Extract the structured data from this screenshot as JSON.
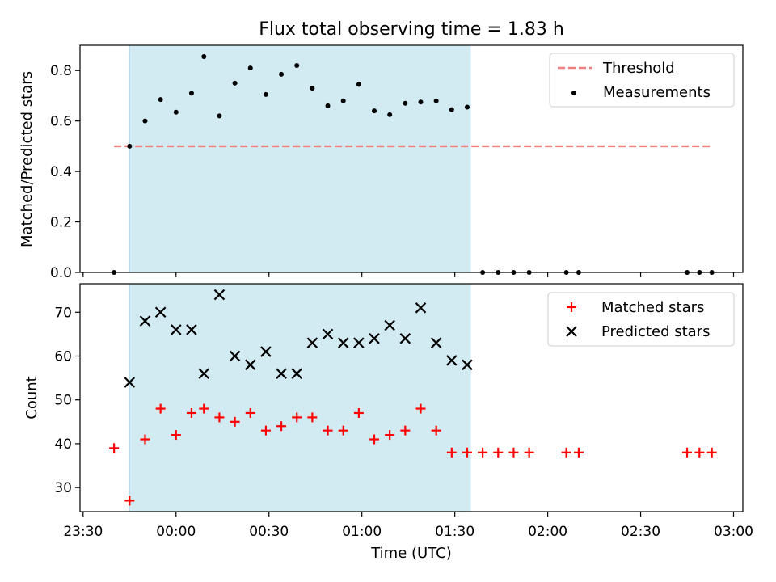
{
  "title": "Flux total observing time = 1.83 h",
  "colors": {
    "measurement": "#000000",
    "threshold": "#f08080",
    "matched": "#ff0000",
    "predicted": "#000000",
    "observing_band": "#add8e6"
  },
  "chart_data": [
    {
      "type": "scatter",
      "panel": "top",
      "ylabel": "Matched/Predicted stars",
      "xlabel": "",
      "ylim": [
        0,
        0.9
      ],
      "yticks": [
        0.0,
        0.2,
        0.4,
        0.6,
        0.8
      ],
      "ytick_labels": [
        "0.0",
        "0.2",
        "0.4",
        "0.6",
        "0.8"
      ],
      "legend": {
        "placement": "top-right",
        "entries": [
          "Threshold",
          "Measurements"
        ]
      },
      "shaded_band": {
        "start": "23:45",
        "end": "01:35"
      },
      "threshold": {
        "name": "Threshold",
        "value": 0.5,
        "x_start": "23:40",
        "x_end": "02:53"
      },
      "series": [
        {
          "name": "Measurements",
          "marker": "dot",
          "points": [
            [
              "23:40",
              0.0
            ],
            [
              "23:45",
              0.5
            ],
            [
              "23:50",
              0.6
            ],
            [
              "23:55",
              0.685
            ],
            [
              "00:00",
              0.635
            ],
            [
              "00:05",
              0.71
            ],
            [
              "00:09",
              0.855
            ],
            [
              "00:14",
              0.62
            ],
            [
              "00:19",
              0.75
            ],
            [
              "00:24",
              0.81
            ],
            [
              "00:29",
              0.705
            ],
            [
              "00:34",
              0.785
            ],
            [
              "00:39",
              0.82
            ],
            [
              "00:44",
              0.73
            ],
            [
              "00:49",
              0.66
            ],
            [
              "00:54",
              0.68
            ],
            [
              "00:59",
              0.745
            ],
            [
              "01:04",
              0.64
            ],
            [
              "01:09",
              0.625
            ],
            [
              "01:14",
              0.67
            ],
            [
              "01:19",
              0.675
            ],
            [
              "01:24",
              0.68
            ],
            [
              "01:29",
              0.645
            ],
            [
              "01:34",
              0.655
            ],
            [
              "01:39",
              0.0
            ],
            [
              "01:44",
              0.0
            ],
            [
              "01:49",
              0.0
            ],
            [
              "01:54",
              0.0
            ],
            [
              "02:06",
              0.0
            ],
            [
              "02:10",
              0.0
            ],
            [
              "02:45",
              0.0
            ],
            [
              "02:49",
              0.0
            ],
            [
              "02:53",
              0.0
            ]
          ]
        }
      ]
    },
    {
      "type": "scatter",
      "panel": "bottom",
      "ylabel": "Count",
      "xlabel": "Time (UTC)",
      "ylim": [
        24.5,
        76.5
      ],
      "yticks": [
        30,
        40,
        50,
        60,
        70
      ],
      "ytick_labels": [
        "30",
        "40",
        "50",
        "60",
        "70"
      ],
      "xlim": [
        "23:29",
        "03:03"
      ],
      "xticks": [
        "23:30",
        "00:00",
        "00:30",
        "01:00",
        "01:30",
        "02:00",
        "02:30",
        "03:00"
      ],
      "xtick_labels": [
        "23:30",
        "00:00",
        "00:30",
        "01:00",
        "01:30",
        "02:00",
        "02:30",
        "03:00"
      ],
      "legend": {
        "placement": "top-right",
        "entries": [
          "Matched stars",
          "Predicted stars"
        ]
      },
      "shaded_band": {
        "start": "23:45",
        "end": "01:35"
      },
      "series": [
        {
          "name": "Matched stars",
          "marker": "plus",
          "points": [
            [
              "23:40",
              39
            ],
            [
              "23:45",
              27
            ],
            [
              "23:50",
              41
            ],
            [
              "23:55",
              48
            ],
            [
              "00:00",
              42
            ],
            [
              "00:05",
              47
            ],
            [
              "00:09",
              48
            ],
            [
              "00:14",
              46
            ],
            [
              "00:19",
              45
            ],
            [
              "00:24",
              47
            ],
            [
              "00:29",
              43
            ],
            [
              "00:34",
              44
            ],
            [
              "00:39",
              46
            ],
            [
              "00:44",
              46
            ],
            [
              "00:49",
              43
            ],
            [
              "00:54",
              43
            ],
            [
              "00:59",
              47
            ],
            [
              "01:04",
              41
            ],
            [
              "01:09",
              42
            ],
            [
              "01:14",
              43
            ],
            [
              "01:19",
              48
            ],
            [
              "01:24",
              43
            ],
            [
              "01:29",
              38
            ],
            [
              "01:34",
              38
            ],
            [
              "01:39",
              38
            ],
            [
              "01:44",
              38
            ],
            [
              "01:49",
              38
            ],
            [
              "01:54",
              38
            ],
            [
              "02:06",
              38
            ],
            [
              "02:10",
              38
            ],
            [
              "02:45",
              38
            ],
            [
              "02:49",
              38
            ],
            [
              "02:53",
              38
            ]
          ]
        },
        {
          "name": "Predicted stars",
          "marker": "x",
          "points": [
            [
              "23:45",
              54
            ],
            [
              "23:50",
              68
            ],
            [
              "23:55",
              70
            ],
            [
              "00:00",
              66
            ],
            [
              "00:05",
              66
            ],
            [
              "00:09",
              56
            ],
            [
              "00:14",
              74
            ],
            [
              "00:19",
              60
            ],
            [
              "00:24",
              58
            ],
            [
              "00:29",
              61
            ],
            [
              "00:34",
              56
            ],
            [
              "00:39",
              56
            ],
            [
              "00:44",
              63
            ],
            [
              "00:49",
              65
            ],
            [
              "00:54",
              63
            ],
            [
              "00:59",
              63
            ],
            [
              "01:04",
              64
            ],
            [
              "01:09",
              67
            ],
            [
              "01:14",
              64
            ],
            [
              "01:19",
              71
            ],
            [
              "01:24",
              63
            ],
            [
              "01:29",
              59
            ],
            [
              "01:34",
              58
            ]
          ]
        }
      ]
    }
  ]
}
